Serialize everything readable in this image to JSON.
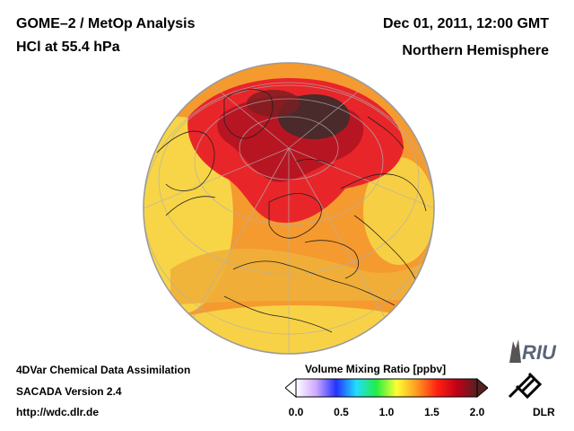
{
  "header": {
    "title_line1": "GOME–2 / MetOp Analysis",
    "title_line2": "HCl at 55.4 hPa",
    "date": "Dec 01, 2011, 12:00 GMT",
    "region": "Northern Hemisphere"
  },
  "footer": {
    "line1": "4DVar Chemical Data Assimilation",
    "line2": "SACADA Version 2.4",
    "line3": "http://wdc.dlr.de"
  },
  "colorbar": {
    "title": "Volume Mixing Ratio [ppbv]",
    "ticks": [
      "0.0",
      "0.5",
      "1.0",
      "1.5",
      "2.0"
    ],
    "min": 0.0,
    "max": 2.0,
    "colors": [
      "#ffffff",
      "#cfa8ff",
      "#2233ff",
      "#22ddff",
      "#22ee44",
      "#ffff33",
      "#ff9922",
      "#ff2211",
      "#c00018",
      "#552222"
    ]
  },
  "logos": {
    "riu": "RIU",
    "dlr": "DLR"
  },
  "map": {
    "projection": "orthographic",
    "center": "North Pole region",
    "palette": {
      "low_yellow": "#f8dc4a",
      "orange": "#f59a2f",
      "red": "#e8262a",
      "dark_red": "#a8101c",
      "darkest": "#4a2a2a"
    }
  }
}
